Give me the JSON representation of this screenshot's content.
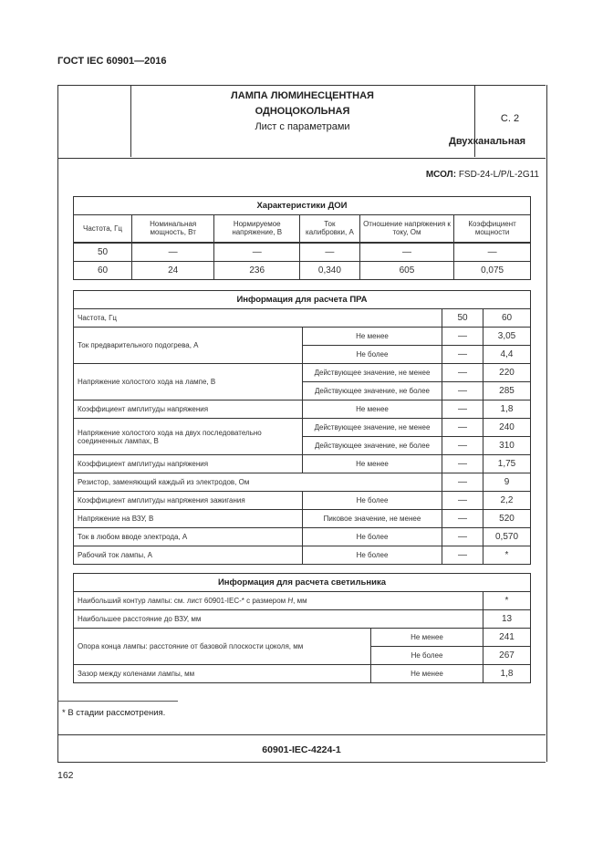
{
  "standard": "ГОСТ IEC 60901—2016",
  "header": {
    "title1": "ЛАМПА ЛЮМИНЕСЦЕНТНАЯ",
    "title2": "ОДНОЦОКОЛЬНАЯ",
    "sheet": "Лист с параметрами",
    "variant": "Двухканальная",
    "page": "С. 2"
  },
  "msol": {
    "label": "МСОЛ:",
    "value": "FSD-24-L/P/L-2G11"
  },
  "doi": {
    "title": "Характеристики ДОИ",
    "headers": [
      "Частота, Гц",
      "Номинальная мощность, Вт",
      "Нормируемое напряжение, В",
      "Ток калибровки, А",
      "Отношение напряжения к току, Ом",
      "Коэффициент мощности"
    ],
    "rows": [
      [
        "50",
        "—",
        "—",
        "—",
        "—",
        "—"
      ],
      [
        "60",
        "24",
        "236",
        "0,340",
        "605",
        "0,075"
      ]
    ]
  },
  "pra": {
    "title": "Информация для расчета ПРА",
    "freq_label": "Частота, Гц",
    "freq": [
      "50",
      "60"
    ],
    "rows": [
      {
        "param": "Ток предварительного подогрева, А",
        "cond": "Не менее",
        "v50": "—",
        "v60": "3,05"
      },
      {
        "cond": "Не более",
        "v50": "—",
        "v60": "4,4"
      },
      {
        "param": "Напряжение холостого хода на лампе, В",
        "cond": "Действующее значение, не менее",
        "v50": "—",
        "v60": "220"
      },
      {
        "cond": "Действующее значение, не более",
        "v50": "—",
        "v60": "285"
      },
      {
        "param": "Коэффициент амплитуды напряжения",
        "cond": "Не менее",
        "v50": "—",
        "v60": "1,8"
      },
      {
        "param": "Напряжение холостого хода на двух последовательно соединенных лампах, В",
        "cond": "Действующее значение, не менее",
        "v50": "—",
        "v60": "240"
      },
      {
        "cond": "Действующее значение, не более",
        "v50": "—",
        "v60": "310"
      },
      {
        "param": "Коэффициент амплитуды напряжения",
        "cond": "Не менее",
        "v50": "—",
        "v60": "1,75"
      },
      {
        "param": "Резистор, заменяющий каждый из электродов, Ом",
        "v50": "—",
        "v60": "9"
      },
      {
        "param": "Коэффициент амплитуды напряжения зажигания",
        "cond": "Не более",
        "v50": "—",
        "v60": "2,2"
      },
      {
        "param": "Напряжение на ВЗУ, В",
        "cond": "Пиковое значение, не менее",
        "v50": "—",
        "v60": "520"
      },
      {
        "param": "Ток в любом вводе электрода, А",
        "cond": "Не более",
        "v50": "—",
        "v60": "0,570"
      },
      {
        "param": "Рабочий ток лампы, А",
        "cond": "Не более",
        "v50": "—",
        "v60": "*"
      }
    ]
  },
  "lum": {
    "title": "Информация для расчета светильника",
    "r1": {
      "param_a": "Наибольший контур лампы: см. лист 60901-IEC-* с размером ",
      "param_i": "H",
      "param_b": ", мм",
      "value": "*"
    },
    "r2": {
      "param": "Наибольшее расстояние до ВЗУ, мм",
      "value": "13"
    },
    "r3": {
      "param": "Опора конца лампы: расстояние от базовой плоскости цоколя, мм",
      "cond1": "Не менее",
      "v1": "241",
      "cond2": "Не более",
      "v2": "267"
    },
    "r4": {
      "param": "Зазор между коленами лампы, мм",
      "cond": "Не менее",
      "value": "1,8"
    }
  },
  "footnote": "* В стадии рассмотрения.",
  "footer_code": "60901-IEC-4224-1",
  "page_number": "162"
}
